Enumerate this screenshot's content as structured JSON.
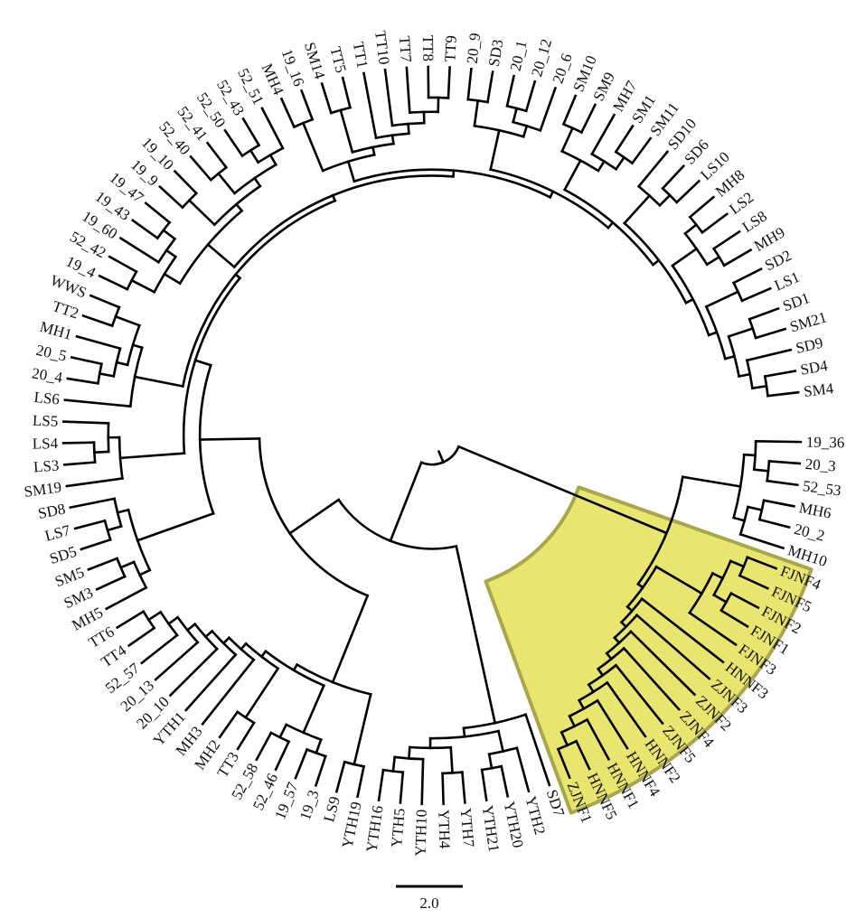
{
  "figure": {
    "type": "circular phylogenetic tree",
    "highlight_color": "#e8e66f",
    "highlight_border_color": "#a9a74c",
    "line_color": "#000000"
  },
  "leaves": [
    "19_36",
    "20_3",
    "52_53",
    "MH6",
    "20_2",
    "MH10",
    "FJNF4",
    "FJNF5",
    "FJNF2",
    "FJNF1",
    "FJNF3",
    "HNNF3",
    "ZJNF3",
    "ZJNF2",
    "ZJNF4",
    "ZJNF5",
    "HNNF2",
    "HNNF4",
    "HNNF1",
    "HNNF5",
    "ZJNF1",
    "SD7",
    "YTH2",
    "YTH20",
    "YTH21",
    "YTH7",
    "YTH4",
    "YTH10",
    "YTH5",
    "YTH16",
    "YTH19",
    "LS9",
    "19_3",
    "19_57",
    "52_46",
    "52_58",
    "TT3",
    "MH2",
    "MH3",
    "YTH1",
    "20_10",
    "20_13",
    "52_57",
    "TT4",
    "TT6",
    "MH5",
    "SM3",
    "SM5",
    "SD5",
    "LS7",
    "SD8",
    "SM19",
    "LS3",
    "LS4",
    "LS5",
    "LS6",
    "20_4",
    "20_5",
    "MH1",
    "TT2",
    "WWS",
    "19_4",
    "52_42",
    "19_60",
    "19_43",
    "19_47",
    "19_9",
    "19_10",
    "52_40",
    "52_41",
    "52_50",
    "52_43",
    "52_51",
    "MH4",
    "19_16",
    "SM14",
    "TT5",
    "TT1",
    "TT10",
    "TT7",
    "TT8",
    "TT9",
    "20_9",
    "SD3",
    "20_1",
    "20_12",
    "20_6",
    "SM10",
    "SM9",
    "MH7",
    "SM1",
    "SM11",
    "SD10",
    "SD6",
    "LS10",
    "MH8",
    "LS2",
    "LS8",
    "MH9",
    "SD2",
    "LS1",
    "SD1",
    "SM21",
    "SD9",
    "SD4",
    "SM4"
  ],
  "highlighted_clade": [
    "FJNF4",
    "FJNF5",
    "FJNF2",
    "FJNF1",
    "FJNF3",
    "HNNF3",
    "ZJNF3",
    "ZJNF2",
    "ZJNF4",
    "ZJNF5",
    "HNNF2",
    "HNNF4",
    "HNNF1",
    "HNNF5",
    "ZJNF1"
  ],
  "scale_bar": {
    "label": "2.0"
  }
}
